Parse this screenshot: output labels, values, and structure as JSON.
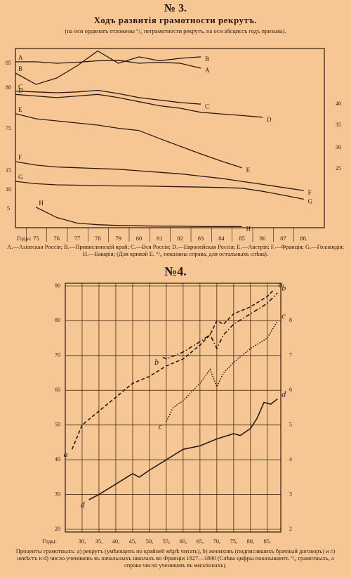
{
  "chart_data": [
    {
      "type": "line",
      "title": "№ 3.",
      "subtitle": "Ходъ развитія грамотности рекрутъ.",
      "note": "(на оси ординатъ отложены °/₀ неграмотности рекрутъ, на оси абсциссъ годъ призыва).",
      "xlabel": "Годы:",
      "caption": "A.—Азіатская Россія; B.—Привислинскій край; C.—Вся Россія; D.—Европейская Россія; E.—Австрія; F.—Франція; G.—Голландія; H.—Баварія; (Для кривой E. °/₀ показаны справа, для остальныхъ слѣва).",
      "x": [
        74,
        75,
        76,
        77,
        78,
        79,
        80,
        81,
        82,
        83,
        84,
        85,
        86,
        87,
        88
      ],
      "xlim": [
        74,
        89
      ],
      "xticks": [
        75,
        76,
        77,
        78,
        79,
        80,
        81,
        82,
        83,
        84,
        85,
        86,
        87,
        {
          "value": 88,
          "label": "88."
        }
      ],
      "ylim": [
        0,
        88
      ],
      "yticks": [
        85,
        80,
        75,
        15,
        10,
        5
      ],
      "y2ticks": [
        40,
        35,
        30,
        25
      ],
      "grid": false,
      "color": "#2a1a10",
      "series": [
        {
          "name": "A",
          "linestyle": "solid",
          "values": [
            85.3,
            85.3,
            85.0,
            85.2,
            85.5,
            85.6,
            85.0,
            85.2,
            85.0,
            84.0,
            null,
            null,
            null,
            null,
            null
          ]
        },
        {
          "name": "B",
          "linestyle": "solid",
          "values": [
            83.0,
            80.7,
            82.0,
            84.5,
            87.5,
            85.0,
            86.3,
            85.5,
            86.0,
            86.3,
            null,
            null,
            null,
            null,
            null
          ]
        },
        {
          "name": "C",
          "linestyle": "solid",
          "values": [
            79.6,
            79.5,
            79.4,
            79.5,
            79.7,
            79.3,
            78.8,
            78.5,
            78.2,
            78.0,
            null,
            null,
            null,
            null,
            null
          ]
        },
        {
          "name": "D",
          "linestyle": "solid",
          "values": [
            79.2,
            79.0,
            78.8,
            79.0,
            79.2,
            78.8,
            78.3,
            77.8,
            77.5,
            77.0,
            76.8,
            76.6,
            76.4,
            null,
            null
          ]
        },
        {
          "name": "E",
          "linestyle": "solid",
          "axis": "y2",
          "values": [
            37.7,
            36.5,
            36.0,
            35.5,
            35.0,
            34.3,
            33.8,
            32.0,
            30.3,
            28.5,
            26.8,
            25.2,
            null,
            null,
            null
          ]
        },
        {
          "name": "F",
          "linestyle": "solid",
          "values": [
            17.4,
            16.5,
            16.0,
            15.8,
            15.6,
            15.4,
            15.0,
            14.6,
            14.2,
            13.6,
            13.0,
            12.2,
            11.4,
            10.6,
            9.8
          ]
        },
        {
          "name": "G",
          "linestyle": "solid",
          "values": [
            12.2,
            11.6,
            11.3,
            11.2,
            11.1,
            11.0,
            11.0,
            10.9,
            10.8,
            10.7,
            10.6,
            10.4,
            9.6,
            8.6,
            7.5
          ]
        },
        {
          "name": "H",
          "linestyle": "solid",
          "values": [
            null,
            5.4,
            2.7,
            1.2,
            0.8,
            0.6,
            0.5,
            0.4,
            0.4,
            0.3,
            0.3,
            0.3,
            null,
            null,
            null
          ]
        }
      ]
    },
    {
      "type": "line",
      "title": "№4.",
      "xlabel": "Годы:",
      "caption": "Проценты грамотныхъ: a) рекрутъ (умѣющихъ по крайней мѣрѣ читать), b) жениховъ (подписавшихъ брачный договоръ) и c) невѣстъ и d) число учениковъ въ начальныхъ школахъ во Франціи 1827—1890 (Слѣва цифры показываютъ °/₀ грамотныхъ, а справа число учениковъ въ милліонахъ).",
      "xlim": [
        1825,
        1889
      ],
      "xticks": [
        {
          "value": 1830,
          "label": "30,"
        },
        {
          "value": 1835,
          "label": "35,"
        },
        {
          "value": 1840,
          "label": "40,"
        },
        {
          "value": 1845,
          "label": "45,"
        },
        {
          "value": 1850,
          "label": "50,"
        },
        {
          "value": 1855,
          "label": "55,"
        },
        {
          "value": 1860,
          "label": "60,"
        },
        {
          "value": 1865,
          "label": "65,"
        },
        {
          "value": 1870,
          "label": "70,"
        },
        {
          "value": 1875,
          "label": "75,"
        },
        {
          "value": 1880,
          "label": "80,"
        },
        {
          "value": 1885,
          "label": "85."
        }
      ],
      "ylim": [
        19.2,
        90.8
      ],
      "yticks": [
        20,
        30,
        40,
        50,
        60,
        70,
        80,
        90
      ],
      "y2lim": [
        1.92,
        9.08
      ],
      "y2ticks": [
        2,
        3,
        4,
        5,
        6,
        7,
        8
      ],
      "grid": true,
      "color": "#2a1a10",
      "series": [
        {
          "name": "a",
          "linestyle": "dashed",
          "x": [
            1827,
            1830,
            1835,
            1840,
            1845,
            1850,
            1855,
            1860,
            1865,
            1868,
            1870,
            1872,
            1875,
            1880,
            1885,
            1887
          ],
          "values": [
            43,
            50,
            54,
            58,
            62,
            64,
            67,
            69,
            73,
            76,
            80,
            79,
            82,
            84,
            87,
            89
          ]
        },
        {
          "name": "b",
          "linestyle": "dashdot",
          "x": [
            1854,
            1855,
            1860,
            1865,
            1868,
            1870,
            1872,
            1875,
            1880,
            1885,
            1888
          ],
          "values": [
            69.5,
            69,
            71,
            74,
            76,
            72,
            76,
            79,
            82,
            85,
            88
          ]
        },
        {
          "name": "c",
          "linestyle": "dotted",
          "x": [
            1855,
            1857,
            1860,
            1865,
            1868,
            1870,
            1872,
            1875,
            1880,
            1885,
            1888
          ],
          "values": [
            51,
            55,
            57,
            62,
            66,
            61,
            65,
            68,
            72,
            75,
            80
          ]
        },
        {
          "name": "d",
          "linestyle": "solid",
          "axis": "y2",
          "x": [
            1832,
            1835,
            1840,
            1845,
            1847,
            1850,
            1855,
            1860,
            1865,
            1870,
            1875,
            1877,
            1880,
            1882,
            1884,
            1886,
            1888
          ],
          "values": [
            2.85,
            3.0,
            3.3,
            3.6,
            3.5,
            3.7,
            4.0,
            4.3,
            4.4,
            4.6,
            4.75,
            4.7,
            4.9,
            5.2,
            5.65,
            5.6,
            5.75
          ]
        }
      ]
    }
  ]
}
